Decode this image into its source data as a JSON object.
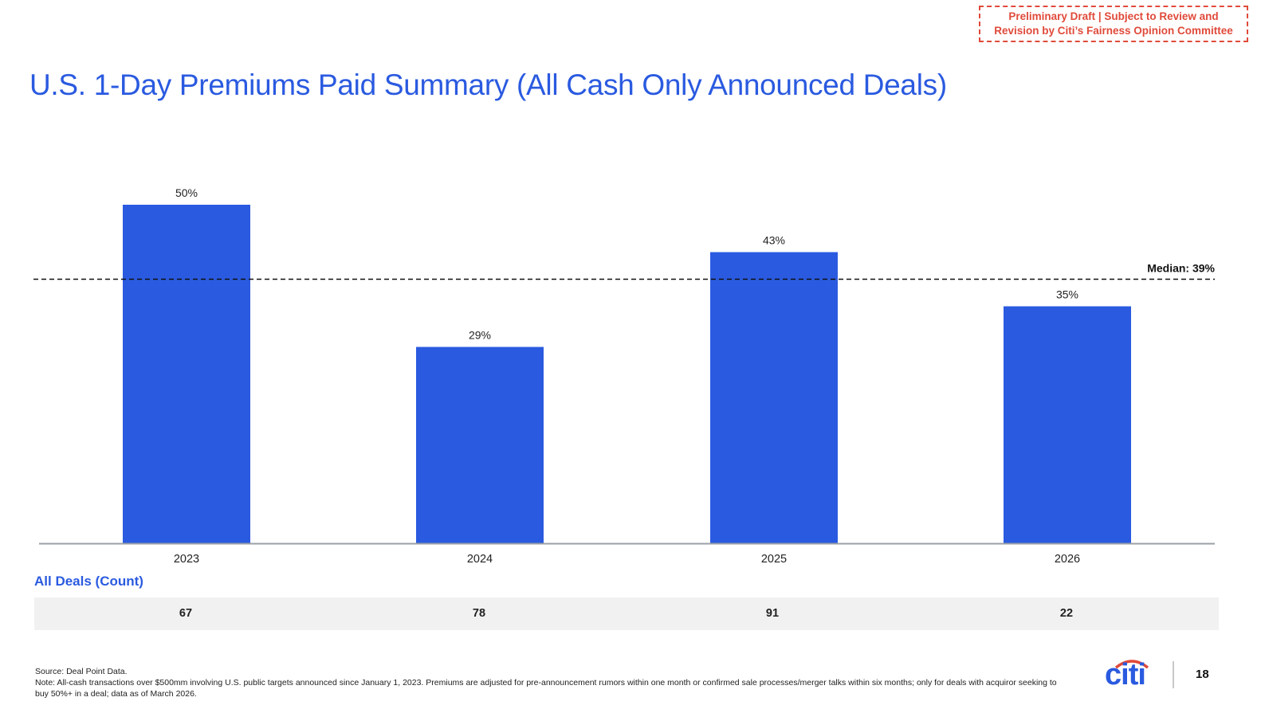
{
  "draft_notice": {
    "line1": "Preliminary Draft | Subject to Review and",
    "line2": "Revision by Citi’s Fairness Opinion Committee"
  },
  "title": "U.S. 1-Day Premiums Paid Summary (All Cash Only Announced Deals)",
  "chart_data": {
    "type": "bar",
    "categories": [
      "2023",
      "2024",
      "2025",
      "2026"
    ],
    "values": [
      50,
      29,
      43,
      35
    ],
    "data_labels": [
      "50%",
      "29%",
      "43%",
      "35%"
    ],
    "unit": "%",
    "ylim": [
      0,
      50
    ],
    "grid": false,
    "median": {
      "value": 39,
      "label": "Median: 39%"
    },
    "bar_color": "#2a5ae0"
  },
  "deals": {
    "heading": "All Deals (Count)",
    "counts": [
      "67",
      "78",
      "91",
      "22"
    ]
  },
  "footnotes": {
    "source": "Source: Deal Point Data.",
    "note": "Note: All-cash transactions over $500mm involving U.S. public targets announced since January 1, 2023. Premiums are adjusted for pre-announcement rumors within one month or confirmed sale processes/merger talks within six months; only for deals with acquiror seeking to buy 50%+ in a deal; data as of March 2026."
  },
  "logo_text": "citi",
  "page_number": "18",
  "colors": {
    "accent": "#2a5ae0",
    "draft": "#e04a3a",
    "axis": "#9aa0a6"
  }
}
